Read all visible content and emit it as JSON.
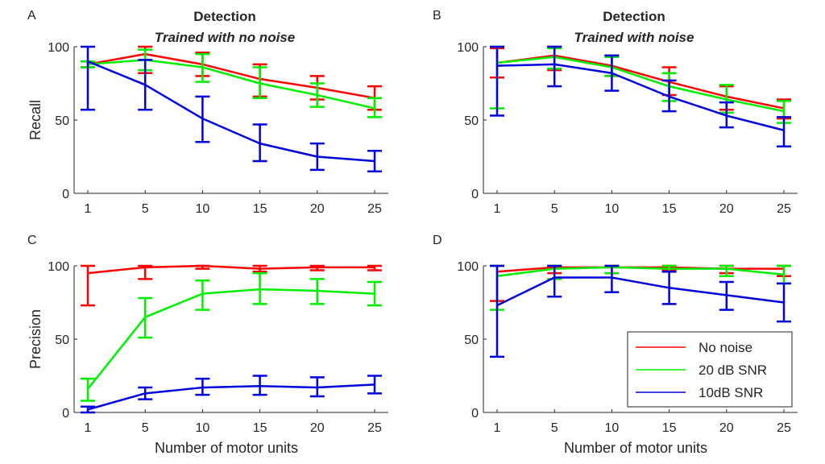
{
  "colors": {
    "no_noise": "#ff0000",
    "snr20": "#00ee00",
    "snr10": "#0000dd",
    "axis": "#262626"
  },
  "legend": {
    "items": [
      {
        "label": "No noise",
        "color": "#ff0000"
      },
      {
        "label": "20 dB SNR",
        "color": "#00ee00"
      },
      {
        "label": "10dB SNR",
        "color": "#0000dd"
      }
    ],
    "position": "lower-right of panel D"
  },
  "chart_data": [
    {
      "panel": "A",
      "type": "line",
      "title": "Detection",
      "subtitle": "Trained with no noise",
      "xlabel": "",
      "ylabel": "Recall",
      "categories": [
        "1",
        "5",
        "10",
        "15",
        "20",
        "25"
      ],
      "yticks": [
        "0",
        "50",
        "100"
      ],
      "ylim": [
        0,
        100
      ],
      "series": [
        {
          "name": "No noise",
          "color": "#ff0000",
          "values": [
            88,
            95,
            88,
            78,
            72,
            65
          ],
          "lower": [
            86,
            82,
            80,
            66,
            64,
            57
          ],
          "upper": [
            90,
            100,
            96,
            88,
            80,
            73
          ]
        },
        {
          "name": "20 dB SNR",
          "color": "#00ee00",
          "values": [
            88,
            91,
            86,
            75,
            67,
            58
          ],
          "lower": [
            86,
            84,
            76,
            65,
            59,
            52
          ],
          "upper": [
            90,
            98,
            95,
            86,
            75,
            65
          ]
        },
        {
          "name": "10dB SNR",
          "color": "#0000dd",
          "values": [
            90,
            74,
            51,
            34,
            25,
            22
          ],
          "lower": [
            57,
            57,
            35,
            22,
            16,
            15
          ],
          "upper": [
            100,
            91,
            66,
            47,
            34,
            29
          ]
        }
      ]
    },
    {
      "panel": "B",
      "type": "line",
      "title": "Detection",
      "subtitle": "Trained with noise",
      "xlabel": "",
      "ylabel": "",
      "categories": [
        "1",
        "5",
        "10",
        "15",
        "20",
        "25"
      ],
      "yticks": [
        "0",
        "50",
        "100"
      ],
      "ylim": [
        0,
        100
      ],
      "series": [
        {
          "name": "No noise",
          "color": "#ff0000",
          "values": [
            89,
            94,
            87,
            76,
            66,
            58
          ],
          "lower": [
            79,
            84,
            80,
            67,
            57,
            51
          ],
          "upper": [
            99,
            100,
            94,
            86,
            73,
            64
          ]
        },
        {
          "name": "20 dB SNR",
          "color": "#00ee00",
          "values": [
            89,
            93,
            86,
            73,
            64,
            56
          ],
          "lower": [
            58,
            85,
            80,
            63,
            55,
            48
          ],
          "upper": [
            100,
            99,
            93,
            82,
            74,
            63
          ]
        },
        {
          "name": "10dB SNR",
          "color": "#0000dd",
          "values": [
            87,
            88,
            82,
            66,
            53,
            43
          ],
          "lower": [
            53,
            73,
            70,
            56,
            45,
            32
          ],
          "upper": [
            100,
            100,
            94,
            77,
            62,
            52
          ]
        }
      ]
    },
    {
      "panel": "C",
      "type": "line",
      "title": "",
      "subtitle": "",
      "xlabel": "Number of motor units",
      "ylabel": "Precision",
      "categories": [
        "1",
        "5",
        "10",
        "15",
        "20",
        "25"
      ],
      "yticks": [
        "0",
        "50",
        "100"
      ],
      "ylim": [
        0,
        100
      ],
      "series": [
        {
          "name": "No noise",
          "color": "#ff0000",
          "values": [
            95,
            99,
            100,
            98,
            99,
            99
          ],
          "lower": [
            73,
            91,
            98,
            96,
            97,
            97
          ],
          "upper": [
            100,
            100,
            100,
            100,
            100,
            100
          ]
        },
        {
          "name": "20 dB SNR",
          "color": "#00ee00",
          "values": [
            16,
            65,
            81,
            84,
            83,
            81
          ],
          "lower": [
            8,
            51,
            70,
            74,
            74,
            73
          ],
          "upper": [
            23,
            78,
            90,
            95,
            91,
            89
          ]
        },
        {
          "name": "10dB SNR",
          "color": "#0000dd",
          "values": [
            2,
            13,
            17,
            18,
            17,
            19
          ],
          "lower": [
            0,
            9,
            12,
            12,
            11,
            13
          ],
          "upper": [
            4,
            17,
            23,
            25,
            24,
            25
          ]
        }
      ]
    },
    {
      "panel": "D",
      "type": "line",
      "title": "",
      "subtitle": "",
      "xlabel": "Number of motor units",
      "ylabel": "",
      "categories": [
        "1",
        "5",
        "10",
        "15",
        "20",
        "25"
      ],
      "yticks": [
        "0",
        "50",
        "100"
      ],
      "ylim": [
        0,
        100
      ],
      "series": [
        {
          "name": "No noise",
          "color": "#ff0000",
          "values": [
            96,
            99,
            99,
            99,
            98,
            98
          ],
          "lower": [
            76,
            95,
            95,
            97,
            95,
            93
          ],
          "upper": [
            100,
            100,
            100,
            100,
            100,
            100
          ]
        },
        {
          "name": "20 dB SNR",
          "color": "#00ee00",
          "values": [
            93,
            98,
            99,
            98,
            98,
            94
          ],
          "lower": [
            70,
            91,
            95,
            96,
            93,
            88
          ],
          "upper": [
            100,
            100,
            100,
            100,
            100,
            100
          ]
        },
        {
          "name": "10dB SNR",
          "color": "#0000dd",
          "values": [
            73,
            92,
            92,
            85,
            80,
            75
          ],
          "lower": [
            38,
            79,
            82,
            74,
            70,
            62
          ],
          "upper": [
            100,
            100,
            100,
            96,
            89,
            88
          ]
        }
      ]
    }
  ]
}
